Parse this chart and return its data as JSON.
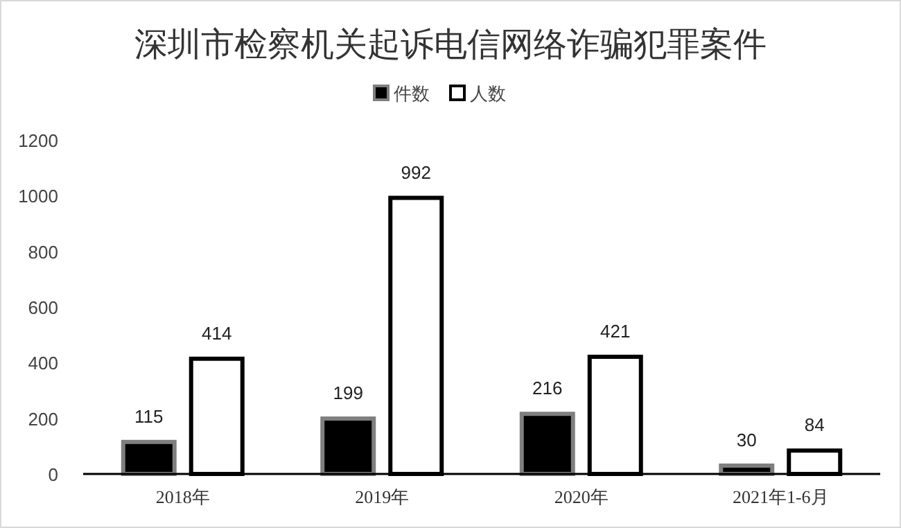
{
  "chart_data": {
    "type": "bar",
    "title": "深圳市检察机关起诉电信网络诈骗犯罪案件",
    "categories": [
      "2018年",
      "2019年",
      "2020年",
      "2021年1-6月"
    ],
    "series": [
      {
        "name": "件数",
        "color": "#000000",
        "values": [
          115,
          199,
          216,
          30
        ]
      },
      {
        "name": "人数",
        "color": "#ffffff",
        "values": [
          414,
          992,
          421,
          84
        ]
      }
    ],
    "ylim": [
      0,
      1200
    ],
    "yticks": [
      0,
      200,
      400,
      600,
      800,
      1000,
      1200
    ],
    "grid": false,
    "legend": "top",
    "data_labels": true
  }
}
